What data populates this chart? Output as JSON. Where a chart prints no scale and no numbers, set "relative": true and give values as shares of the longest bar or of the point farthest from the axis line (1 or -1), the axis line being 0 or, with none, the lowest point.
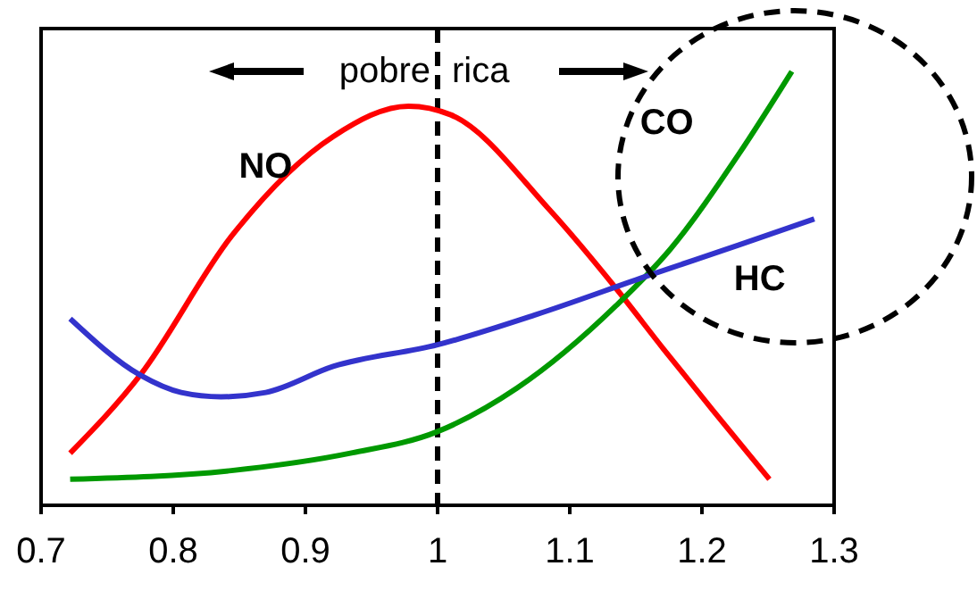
{
  "chart_data": {
    "type": "line",
    "relative": true,
    "xlim": [
      0.7,
      1.3
    ],
    "xticks": [
      0.7,
      0.8,
      0.9,
      1,
      1.1,
      1.2,
      1.3
    ],
    "series": [
      {
        "name": "NO",
        "color": "#ff0000",
        "x": [
          0.722,
          0.775,
          0.844,
          0.921,
          0.978,
          1.01,
          1.085,
          1.135,
          1.171,
          1.208,
          1.251
        ],
        "values": [
          0.12,
          0.3,
          0.62,
          0.85,
          0.92,
          0.9,
          0.68,
          0.5,
          0.36,
          0.22,
          0.06
        ]
      },
      {
        "name": "CO",
        "color": "#009900",
        "x": [
          0.722,
          0.844,
          0.934,
          1.0,
          1.06,
          1.135,
          1.176,
          1.228,
          1.268
        ],
        "values": [
          0.06,
          0.08,
          0.12,
          0.17,
          0.27,
          0.46,
          0.59,
          0.81,
          1
        ]
      },
      {
        "name": "HC",
        "color": "#3333cc",
        "x": [
          0.722,
          0.775,
          0.806,
          0.836,
          0.87,
          0.921,
          1.0,
          1.075,
          1.16,
          1.228,
          1.285
        ],
        "values": [
          0.43,
          0.3,
          0.26,
          0.25,
          0.26,
          0.32,
          0.37,
          0.44,
          0.53,
          0.6,
          0.66
        ]
      }
    ],
    "ref_lines": [
      {
        "axis": "x",
        "value": 1,
        "line_style": "dashed",
        "color": "#000000"
      }
    ],
    "annotations": [
      "pobre",
      "rica"
    ],
    "marker": "none",
    "line_style": "solid",
    "grid": false
  }
}
